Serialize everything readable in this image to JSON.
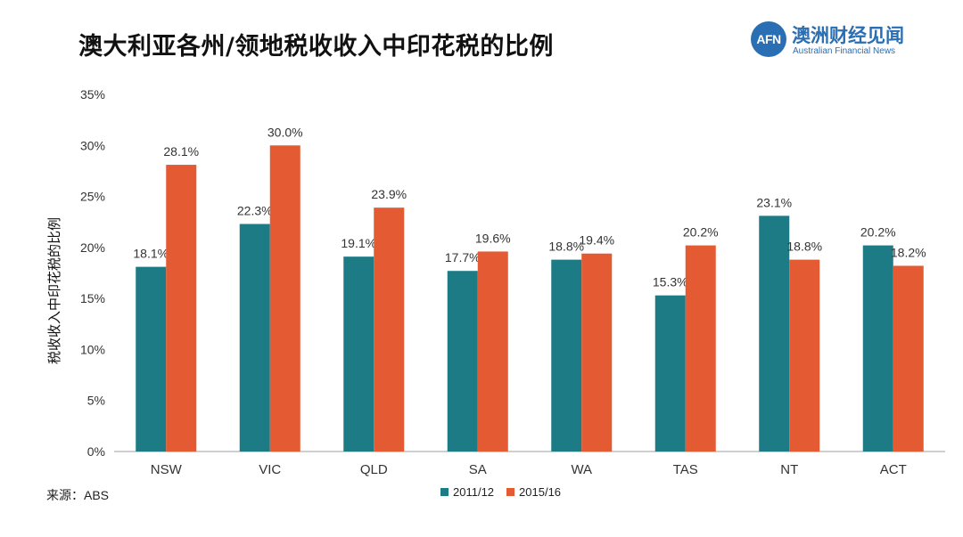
{
  "title": "澳大利亚各州/领地税收收入中印花税的比例",
  "brand": {
    "logo_text": "AFN",
    "name": "澳洲财经见闻",
    "subtitle": "Australian Financial News"
  },
  "source": "来源：ABS",
  "colors": {
    "series_2011": "#1d7b86",
    "series_2015": "#e35a33",
    "axis": "#bfbfbf"
  },
  "chart_data": {
    "type": "bar",
    "title": "澳大利亚各州/领地税收收入中印花税的比例",
    "xlabel": "",
    "ylabel": "税收收入中印花税的比例",
    "categories": [
      "NSW",
      "VIC",
      "QLD",
      "SA",
      "WA",
      "TAS",
      "NT",
      "ACT"
    ],
    "series": [
      {
        "name": "2011/12",
        "values": [
          18.1,
          22.3,
          19.1,
          17.7,
          18.8,
          15.3,
          23.1,
          20.2
        ],
        "labels": [
          "18.1%",
          "22.3%",
          "19.1%",
          "17.7%",
          "18.8%",
          "15.3%",
          "23.1%",
          "20.2%"
        ]
      },
      {
        "name": "2015/16",
        "values": [
          28.1,
          30.0,
          23.9,
          19.6,
          19.4,
          20.2,
          18.8,
          18.2
        ],
        "labels": [
          "28.1%",
          "30.0%",
          "23.9%",
          "19.6%",
          "19.4%",
          "20.2%",
          "18.8%",
          "18.2%"
        ]
      }
    ],
    "ylim": [
      0,
      35
    ],
    "yticks": [
      "0%",
      "5%",
      "10%",
      "15%",
      "20%",
      "25%",
      "30%",
      "35%"
    ],
    "grid": false,
    "legend": "bottom"
  }
}
